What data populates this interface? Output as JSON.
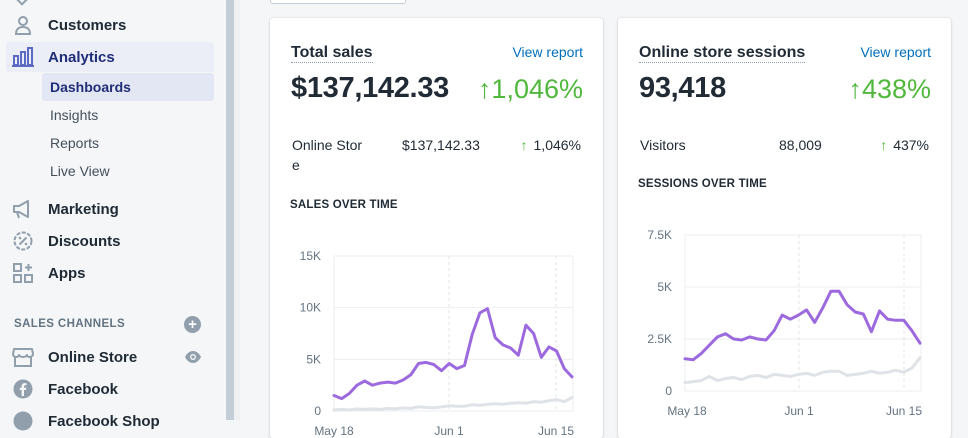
{
  "sidebar": {
    "items": [
      {
        "label": "Customers",
        "icon": "customer-icon"
      },
      {
        "label": "Analytics",
        "icon": "analytics-icon"
      },
      {
        "label": "Marketing",
        "icon": "marketing-icon"
      },
      {
        "label": "Discounts",
        "icon": "discount-icon"
      },
      {
        "label": "Apps",
        "icon": "apps-icon"
      }
    ],
    "analytics_sub": [
      "Dashboards",
      "Insights",
      "Reports",
      "Live View"
    ],
    "sales_channels_label": "SALES CHANNELS",
    "channels": [
      {
        "label": "Online Store",
        "icon": "store-icon"
      },
      {
        "label": "Facebook",
        "icon": "facebook-icon"
      },
      {
        "label": "Facebook Shop",
        "icon": "facebook-shop-icon"
      }
    ]
  },
  "cards": [
    {
      "title": "Total sales",
      "view_report": "View report",
      "value": "$137,142.33",
      "change": "↑1,046%",
      "breakdown": {
        "label": "Online Stor\ne",
        "value": "$137,142.33",
        "arrow": "↑",
        "change": "1,046%"
      },
      "chart_heading": "SALES OVER TIME"
    },
    {
      "title": "Online store sessions",
      "view_report": "View report",
      "value": "93,418",
      "change": "↑438%",
      "breakdown": {
        "label": "Visitors",
        "value": "88,009",
        "arrow": "↑",
        "change": "437%"
      },
      "chart_heading": "SESSIONS OVER TIME"
    }
  ],
  "colors": {
    "accent": "#9c6ade",
    "comparison": "#dfe3e8",
    "positive": "#50b83c",
    "link": "#006fbb",
    "active_bg": "#ebeef7"
  },
  "chart_data": [
    {
      "type": "line",
      "title": "SALES OVER TIME",
      "x_ticks": [
        "May 18",
        "Jun 1",
        "Jun 15"
      ],
      "y_ticks": [
        "0",
        "5K",
        "10K",
        "15K"
      ],
      "ylim": [
        0,
        15000
      ],
      "series": [
        {
          "values": [
            1500,
            1200,
            1700,
            2500,
            2900,
            2500,
            2700,
            2800,
            2700,
            3000,
            3500,
            4600,
            4700,
            4500,
            3900,
            4600,
            4100,
            4400,
            7400,
            9500,
            9900,
            7100,
            6400,
            6100,
            5400,
            8300,
            7500,
            5200,
            6200,
            5800,
            4100,
            3300
          ]
        },
        {
          "values": [
            100,
            150,
            100,
            200,
            150,
            200,
            150,
            250,
            200,
            300,
            250,
            400,
            350,
            300,
            400,
            500,
            450,
            450,
            600,
            550,
            650,
            700,
            650,
            750,
            800,
            750,
            900,
            850,
            1000,
            1100,
            900,
            1300
          ]
        }
      ]
    },
    {
      "type": "line",
      "title": "SESSIONS OVER TIME",
      "x_ticks": [
        "May 18",
        "Jun 1",
        "Jun 15"
      ],
      "y_ticks": [
        "0",
        "2.5K",
        "5K",
        "7.5K"
      ],
      "ylim": [
        0,
        7500
      ],
      "series": [
        {
          "values": [
            1550,
            1500,
            1800,
            2200,
            2600,
            2750,
            2500,
            2450,
            2600,
            2500,
            2450,
            2900,
            3650,
            3450,
            3650,
            3900,
            3300,
            4000,
            4800,
            4800,
            4150,
            3800,
            3700,
            2850,
            3850,
            3450,
            3400,
            3400,
            2900,
            2300
          ]
        },
        {
          "values": [
            400,
            450,
            500,
            700,
            500,
            600,
            650,
            550,
            700,
            750,
            650,
            800,
            750,
            700,
            800,
            850,
            750,
            900,
            950,
            950,
            750,
            800,
            850,
            950,
            850,
            900,
            1000,
            900,
            1100,
            1600
          ]
        }
      ]
    }
  ]
}
